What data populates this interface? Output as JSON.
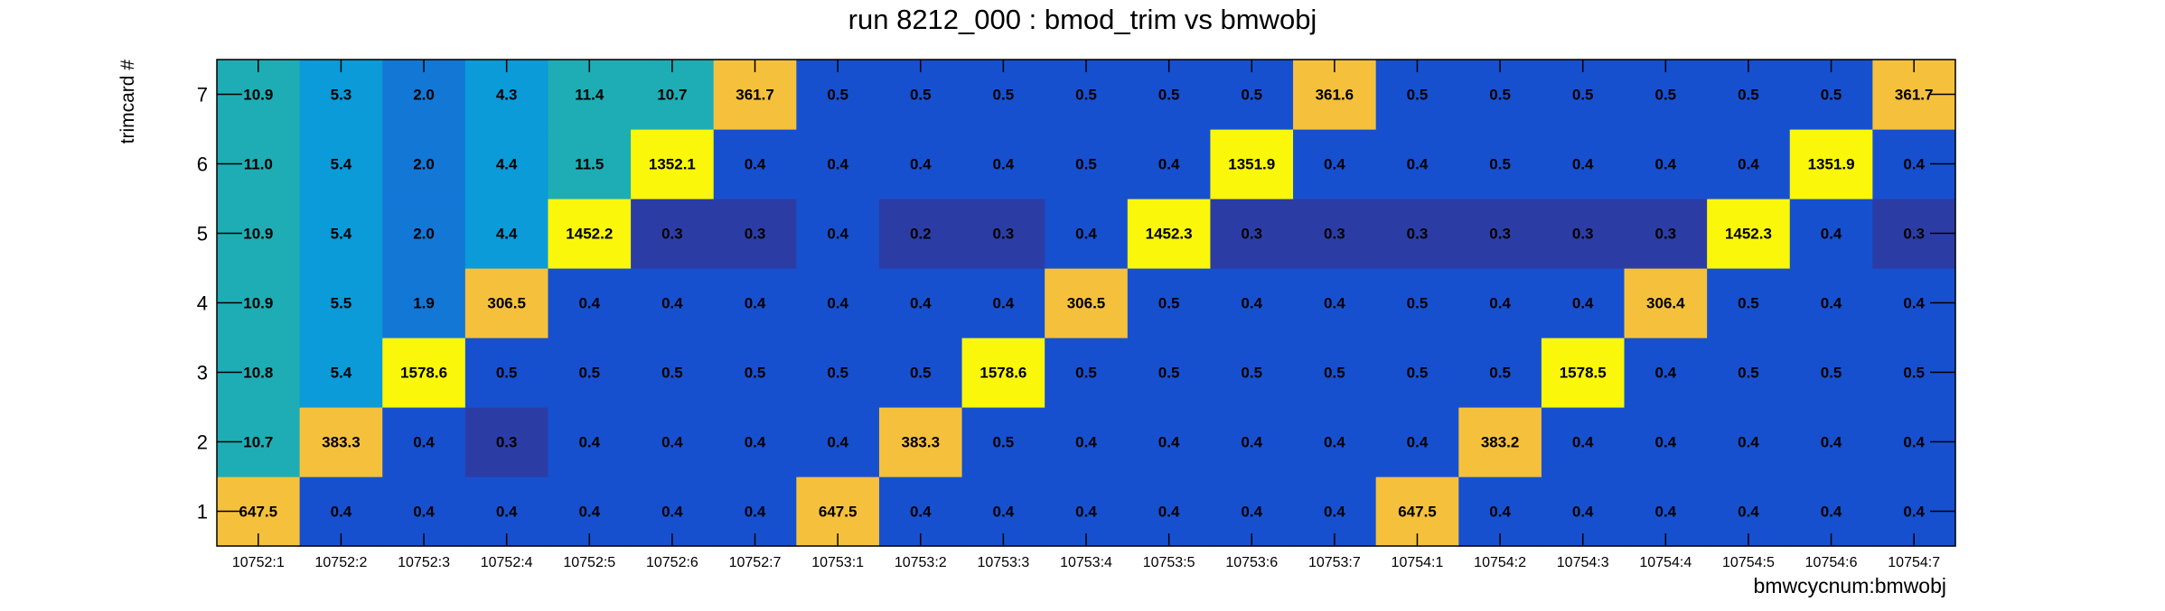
{
  "chart_data": {
    "type": "heatmap",
    "title": "run 8212_000 : bmod_trim vs bmwobj",
    "xlabel": "bmwcycnum:bmwobj",
    "ylabel": "trimcard #",
    "x_categories": [
      "10752:1",
      "10752:2",
      "10752:3",
      "10752:4",
      "10752:5",
      "10752:6",
      "10752:7",
      "10753:1",
      "10753:2",
      "10753:3",
      "10753:4",
      "10753:5",
      "10753:6",
      "10753:7",
      "10754:1",
      "10754:2",
      "10754:3",
      "10754:4",
      "10754:5",
      "10754:6",
      "10754:7"
    ],
    "y_categories": [
      "1",
      "2",
      "3",
      "4",
      "5",
      "6",
      "7"
    ],
    "values": [
      [
        647.5,
        0.4,
        0.4,
        0.4,
        0.4,
        0.4,
        0.4,
        647.5,
        0.4,
        0.4,
        0.4,
        0.4,
        0.4,
        0.4,
        647.5,
        0.4,
        0.4,
        0.4,
        0.4,
        0.4,
        0.4
      ],
      [
        10.7,
        383.3,
        0.4,
        0.3,
        0.4,
        0.4,
        0.4,
        0.4,
        383.3,
        0.5,
        0.4,
        0.4,
        0.4,
        0.4,
        0.4,
        383.2,
        0.4,
        0.4,
        0.4,
        0.4,
        0.4
      ],
      [
        10.8,
        5.4,
        1578.6,
        0.5,
        0.5,
        0.5,
        0.5,
        0.5,
        0.5,
        1578.6,
        0.5,
        0.5,
        0.5,
        0.5,
        0.5,
        0.5,
        1578.5,
        0.4,
        0.5,
        0.5,
        0.5
      ],
      [
        10.9,
        5.5,
        1.9,
        306.5,
        0.4,
        0.4,
        0.4,
        0.4,
        0.4,
        0.4,
        306.5,
        0.5,
        0.4,
        0.4,
        0.5,
        0.4,
        0.4,
        306.4,
        0.5,
        0.4,
        0.4
      ],
      [
        10.9,
        5.4,
        2.0,
        4.4,
        1452.2,
        0.3,
        0.3,
        0.4,
        0.2,
        0.3,
        0.4,
        1452.3,
        0.3,
        0.3,
        0.3,
        0.3,
        0.3,
        0.3,
        1452.3,
        0.4,
        0.3
      ],
      [
        11.0,
        5.4,
        2.0,
        4.4,
        11.5,
        1352.1,
        0.4,
        0.4,
        0.4,
        0.4,
        0.5,
        0.4,
        1351.9,
        0.4,
        0.4,
        0.5,
        0.4,
        0.4,
        0.4,
        1351.9,
        0.4
      ],
      [
        10.9,
        5.3,
        2.0,
        4.3,
        11.4,
        10.7,
        361.7,
        0.5,
        0.5,
        0.5,
        0.5,
        0.5,
        0.5,
        361.6,
        0.5,
        0.5,
        0.5,
        0.5,
        0.5,
        0.5,
        361.7
      ]
    ],
    "color_scale": "log",
    "colors": {
      "very_low": "#2B3DA5",
      "low": "#1750CF",
      "mid_low": "#1377D6",
      "mid": "#0A9BD8",
      "mid_high": "#1EADB4",
      "high": "#F5C13D",
      "very_high": "#FAF70A"
    },
    "grid": false,
    "legend": "none"
  }
}
